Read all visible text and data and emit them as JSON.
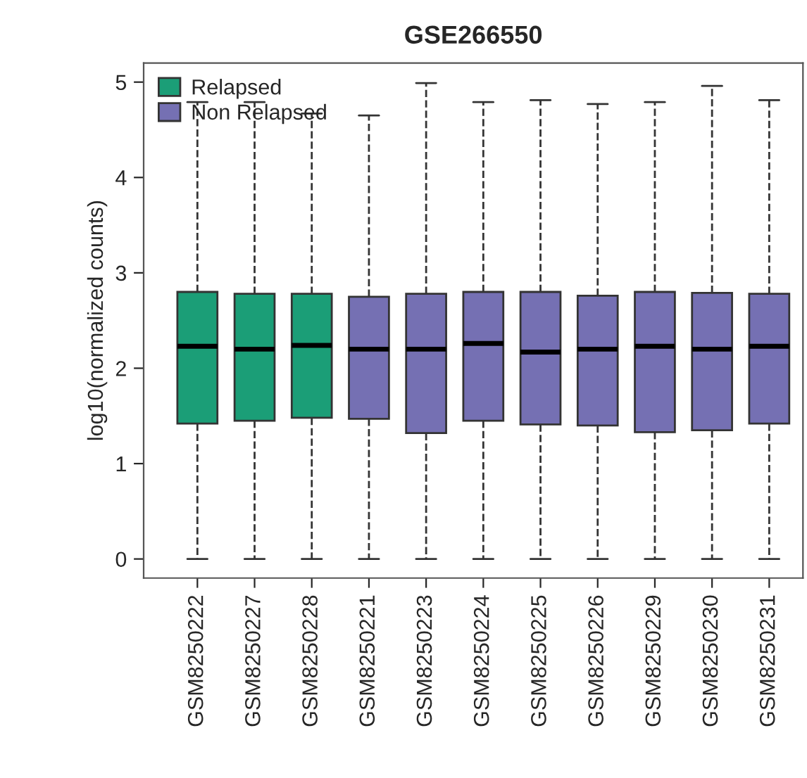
{
  "chart_data": {
    "type": "box",
    "title": "GSE266550",
    "ylabel": "log10(normalized counts)",
    "categories": [
      "GSM8250222",
      "GSM8250227",
      "GSM8250228",
      "GSM8250221",
      "GSM8250223",
      "GSM8250224",
      "GSM8250225",
      "GSM8250226",
      "GSM8250229",
      "GSM8250230",
      "GSM8250231"
    ],
    "ylim": [
      -0.2,
      5.2
    ],
    "yticks": [
      0,
      1,
      2,
      3,
      4,
      5
    ],
    "grid": false,
    "legend": "top left",
    "series": [
      {
        "name": "Relapsed",
        "color": "#1b9e77",
        "boxes": [
          {
            "low": 0,
            "q1": 1.42,
            "median": 2.23,
            "q3": 2.8,
            "high": 4.79
          },
          {
            "low": 0,
            "q1": 1.45,
            "median": 2.2,
            "q3": 2.78,
            "high": 4.79
          },
          {
            "low": 0,
            "q1": 1.48,
            "median": 2.24,
            "q3": 2.78,
            "high": 4.67
          },
          null,
          null,
          null,
          null,
          null,
          null,
          null,
          null
        ]
      },
      {
        "name": "Non Relapsed",
        "color": "#7570b3",
        "boxes": [
          null,
          null,
          null,
          {
            "low": 0,
            "q1": 1.47,
            "median": 2.2,
            "q3": 2.75,
            "high": 4.65
          },
          {
            "low": 0,
            "q1": 1.32,
            "median": 2.2,
            "q3": 2.78,
            "high": 4.99
          },
          {
            "low": 0,
            "q1": 1.45,
            "median": 2.26,
            "q3": 2.8,
            "high": 4.79
          },
          {
            "low": 0,
            "q1": 1.41,
            "median": 2.17,
            "q3": 2.8,
            "high": 4.81
          },
          {
            "low": 0,
            "q1": 1.4,
            "median": 2.2,
            "q3": 2.76,
            "high": 4.77
          },
          {
            "low": 0,
            "q1": 1.33,
            "median": 2.23,
            "q3": 2.8,
            "high": 4.79
          },
          {
            "low": 0,
            "q1": 1.35,
            "median": 2.2,
            "q3": 2.79,
            "high": 4.96
          },
          {
            "low": 0,
            "q1": 1.42,
            "median": 2.23,
            "q3": 2.78,
            "high": 4.81
          }
        ]
      }
    ]
  }
}
